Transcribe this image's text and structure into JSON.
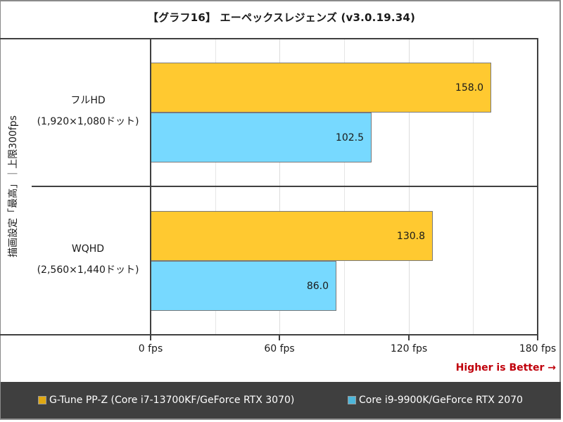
{
  "title": "【グラフ16】 エーペックスレジェンズ (v3.0.19.34)",
  "y_axis_title": "描画設定「最高」｜上限300fps",
  "better_note": "Higher is Better →",
  "colors": {
    "series_1": "#FFC930",
    "series_2": "#77D9FF",
    "note": "#C0000B",
    "legend_bg": "#3F3F3F"
  },
  "x_ticks": [
    "0 fps",
    "60 fps",
    "120 fps",
    "180 fps"
  ],
  "categories": [
    {
      "line1": "フルHD",
      "line2": "(1,920×1,080ドット)"
    },
    {
      "line1": "WQHD",
      "line2": "(2,560×1,440ドット)"
    }
  ],
  "bars": {
    "fhd_s1": "158.0",
    "fhd_s2": "102.5",
    "wqhd_s1": "130.8",
    "wqhd_s2": "86.0"
  },
  "legend": [
    {
      "label": "G-Tune PP-Z (Core i7-13700KF/GeForce RTX 3070)",
      "color": "#E0A812"
    },
    {
      "label": "Core i9-9900K/GeForce RTX 2070",
      "color": "#4DB6DA"
    }
  ],
  "chart_data": {
    "type": "bar",
    "orientation": "horizontal",
    "title": "【グラフ16】 エーペックスレジェンズ (v3.0.19.34)",
    "xlabel": "",
    "ylabel": "描画設定「最高」｜上限300fps",
    "categories": [
      "フルHD (1,920×1,080ドット)",
      "WQHD (2,560×1,440ドット)"
    ],
    "series": [
      {
        "name": "G-Tune PP-Z (Core i7-13700KF/GeForce RTX 3070)",
        "values": [
          158.0,
          130.8
        ],
        "color": "#FFC930"
      },
      {
        "name": "Core i9-9900K/GeForce RTX 2070",
        "values": [
          102.5,
          86.0
        ],
        "color": "#77D9FF"
      }
    ],
    "xlim": [
      0,
      180
    ],
    "x_ticks": [
      0,
      60,
      120,
      180
    ],
    "x_tick_labels": [
      "0 fps",
      "60 fps",
      "120 fps",
      "180 fps"
    ],
    "minor_grid_step": 30,
    "grid": true,
    "legend_position": "bottom",
    "annotation": "Higher is Better →"
  }
}
